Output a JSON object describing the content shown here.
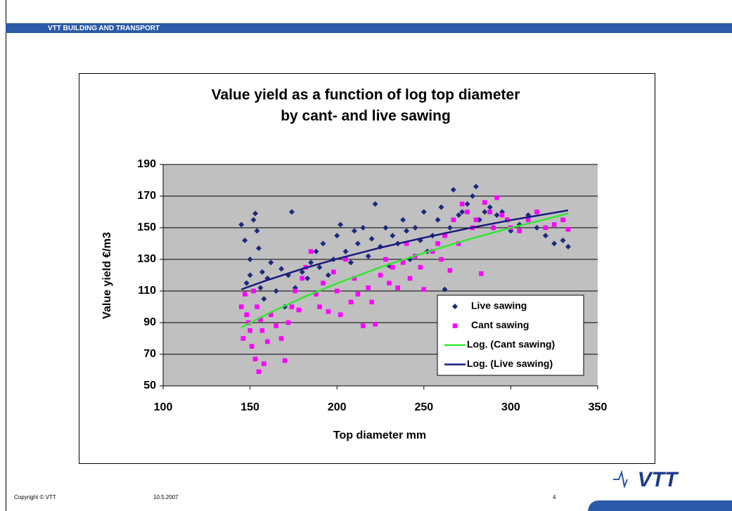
{
  "slide": {
    "header": "VTT BUILDING AND TRANSPORT",
    "copyright": "Copyright © VTT",
    "date": "10.5.2007",
    "page": "4",
    "logo": "VTT"
  },
  "chart_data": {
    "type": "scatter",
    "title": [
      "Value yield as a function of log top diameter",
      "by cant- and live sawing"
    ],
    "x_label": "Top diameter mm",
    "y_label": "Value yield €/m3",
    "xlim": [
      100,
      350
    ],
    "xticks": [
      100,
      150,
      200,
      250,
      300,
      350
    ],
    "ylim": [
      50,
      190
    ],
    "yticks": [
      50,
      70,
      90,
      110,
      130,
      150,
      170,
      190
    ],
    "grid": true,
    "legend": "lower right",
    "plot_background": "#c0c0c0",
    "series": [
      {
        "name": "Live sawing",
        "type": "scatter",
        "marker": "diamond",
        "color": "#1c2a7c",
        "x": [
          145,
          147,
          148,
          150,
          150,
          152,
          153,
          154,
          155,
          156,
          157,
          158,
          160,
          162,
          165,
          168,
          170,
          172,
          174,
          176,
          180,
          183,
          185,
          188,
          190,
          192,
          195,
          198,
          200,
          202,
          205,
          208,
          210,
          212,
          215,
          218,
          220,
          222,
          225,
          228,
          230,
          232,
          235,
          238,
          240,
          242,
          245,
          248,
          250,
          252,
          255,
          258,
          260,
          262,
          265,
          267,
          270,
          272,
          275,
          278,
          280,
          282,
          285,
          288,
          290,
          292,
          295,
          298,
          300,
          305,
          310,
          315,
          320,
          325,
          330,
          333
        ],
        "values": [
          152,
          142,
          115,
          120,
          130,
          155,
          159,
          148,
          137,
          112,
          122,
          105,
          118,
          128,
          110,
          124,
          100,
          120,
          160,
          112,
          122,
          118,
          128,
          135,
          125,
          140,
          120,
          130,
          145,
          152,
          135,
          128,
          148,
          140,
          150,
          132,
          143,
          165,
          138,
          150,
          126,
          145,
          140,
          155,
          148,
          130,
          150,
          142,
          160,
          135,
          145,
          155,
          163,
          111,
          150,
          174,
          158,
          160,
          165,
          170,
          176,
          155,
          160,
          163,
          150,
          158,
          160,
          155,
          148,
          152,
          158,
          150,
          145,
          140,
          142,
          138
        ]
      },
      {
        "name": "Cant sawing",
        "type": "scatter",
        "marker": "square",
        "color": "#ff00ff",
        "x": [
          145,
          146,
          147,
          148,
          149,
          150,
          151,
          152,
          153,
          154,
          155,
          156,
          157,
          158,
          160,
          162,
          165,
          168,
          170,
          172,
          174,
          176,
          178,
          180,
          182,
          185,
          188,
          190,
          192,
          195,
          198,
          200,
          202,
          205,
          208,
          210,
          212,
          215,
          218,
          220,
          222,
          225,
          228,
          230,
          232,
          235,
          238,
          240,
          242,
          245,
          248,
          250,
          255,
          258,
          260,
          262,
          265,
          267,
          270,
          272,
          275,
          278,
          280,
          283,
          285,
          288,
          290,
          292,
          295,
          298,
          300,
          305,
          310,
          315,
          320,
          325,
          330,
          333
        ],
        "values": [
          100,
          80,
          108,
          95,
          90,
          85,
          75,
          110,
          67,
          100,
          59,
          92,
          85,
          64,
          78,
          95,
          88,
          80,
          66,
          90,
          100,
          110,
          98,
          118,
          125,
          135,
          108,
          100,
          115,
          97,
          122,
          110,
          95,
          130,
          103,
          118,
          108,
          88,
          112,
          103,
          89,
          120,
          130,
          115,
          125,
          112,
          128,
          140,
          118,
          132,
          125,
          111,
          135,
          140,
          130,
          145,
          123,
          155,
          140,
          165,
          160,
          150,
          155,
          121,
          166,
          160,
          150,
          169,
          158,
          155,
          150,
          148,
          155,
          160,
          150,
          152,
          155,
          149
        ]
      },
      {
        "name": "Log. (Cant sawing)",
        "type": "line",
        "color": "#33e633",
        "x": [
          145,
          160,
          180,
          200,
          225,
          250,
          275,
          300,
          333
        ],
        "values": [
          87,
          95.5,
          105.7,
          114.8,
          125,
          134.1,
          142.4,
          149.9,
          159
        ]
      },
      {
        "name": "Log. (Live sawing)",
        "type": "line",
        "color": "#1a1a80",
        "x": [
          145,
          160,
          180,
          200,
          225,
          250,
          275,
          300,
          333
        ],
        "values": [
          111,
          116.9,
          124,
          130.3,
          137.4,
          143.7,
          149.5,
          154.8,
          161
        ]
      }
    ]
  }
}
